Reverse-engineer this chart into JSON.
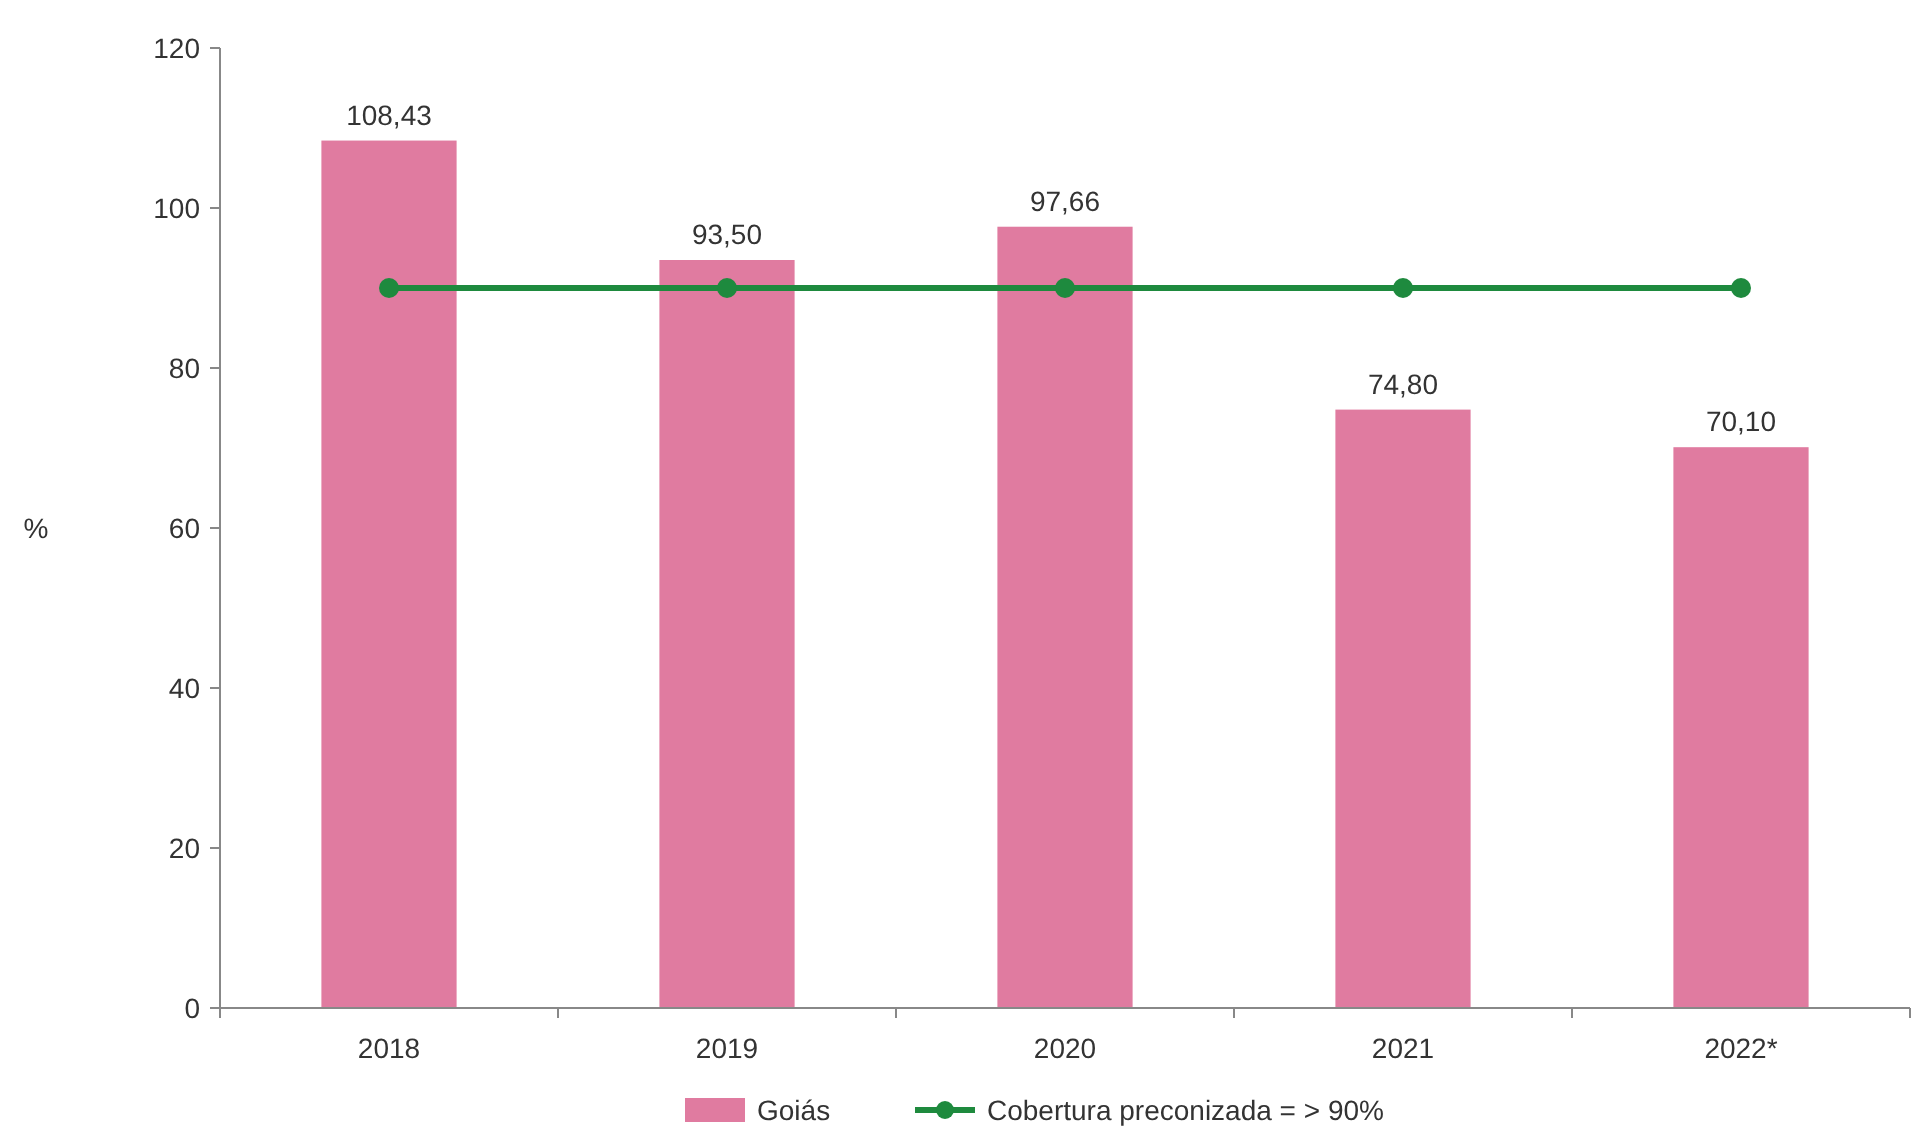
{
  "chart_data": {
    "type": "bar",
    "ylabel": "%",
    "categories": [
      "2018",
      "2019",
      "2020",
      "2021",
      "2022*"
    ],
    "series": [
      {
        "name": "Goiás",
        "color": "#e07ba0",
        "values": [
          108.43,
          93.5,
          97.66,
          74.8,
          70.1
        ],
        "value_labels": [
          "108,43",
          "93,50",
          "97,66",
          "74,80",
          "70,10"
        ]
      },
      {
        "name": "Cobertura preconizada = > 90%",
        "type": "line",
        "color": "#1e8a3e",
        "values": [
          90,
          90,
          90,
          90,
          90
        ],
        "marker": "circle"
      }
    ],
    "ylim": [
      0,
      120
    ],
    "yticks": [
      0,
      20,
      40,
      60,
      80,
      100,
      120
    ],
    "grid": false,
    "legend": "bottom"
  }
}
